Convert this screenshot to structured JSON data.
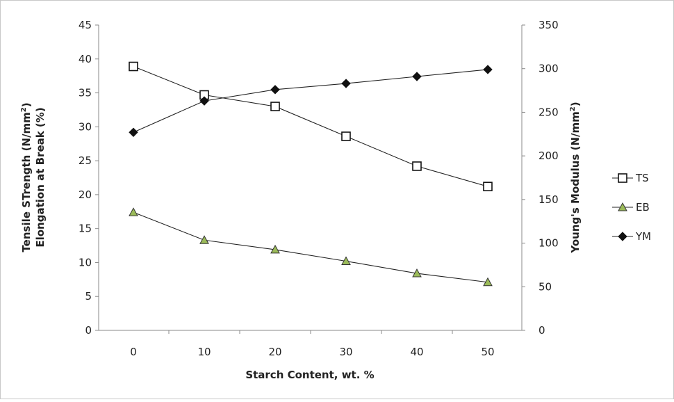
{
  "chart_data": {
    "type": "line",
    "title": "",
    "xlabel": "Starch Content, wt. %",
    "ylabel_left_line1_pre": "Tensile STrength (N/mm",
    "ylabel_left_line1_sup": "2",
    "ylabel_left_line1_post": ")",
    "ylabel_left_line2": "Elongation at Break (%)",
    "ylabel_right_pre": "Young's Modulus (N/mm",
    "ylabel_right_sup": "2",
    "ylabel_right_post": ")",
    "x": [
      0,
      10,
      20,
      30,
      40,
      50
    ],
    "x_tick_labels": [
      "0",
      "10",
      "20",
      "30",
      "40",
      "50"
    ],
    "ylim_left": [
      0,
      45
    ],
    "yticks_left": [
      "0",
      "5",
      "10",
      "15",
      "20",
      "25",
      "30",
      "35",
      "40",
      "45"
    ],
    "ylim_right": [
      0,
      350
    ],
    "yticks_right": [
      "0",
      "50",
      "100",
      "150",
      "200",
      "250",
      "300",
      "350"
    ],
    "grid": false,
    "legend_position": "right",
    "series": [
      {
        "name": "TS",
        "axis": "left",
        "marker": "square-open",
        "values": [
          38.9,
          34.7,
          33.0,
          28.6,
          24.2,
          21.2
        ]
      },
      {
        "name": "EB",
        "axis": "left",
        "marker": "triangle",
        "marker_color": "#9bbb59",
        "values": [
          17.4,
          13.3,
          11.9,
          10.2,
          8.4,
          7.1
        ]
      },
      {
        "name": "YM",
        "axis": "right",
        "marker": "diamond",
        "values": [
          227,
          263,
          276,
          283,
          291,
          299
        ]
      }
    ]
  }
}
